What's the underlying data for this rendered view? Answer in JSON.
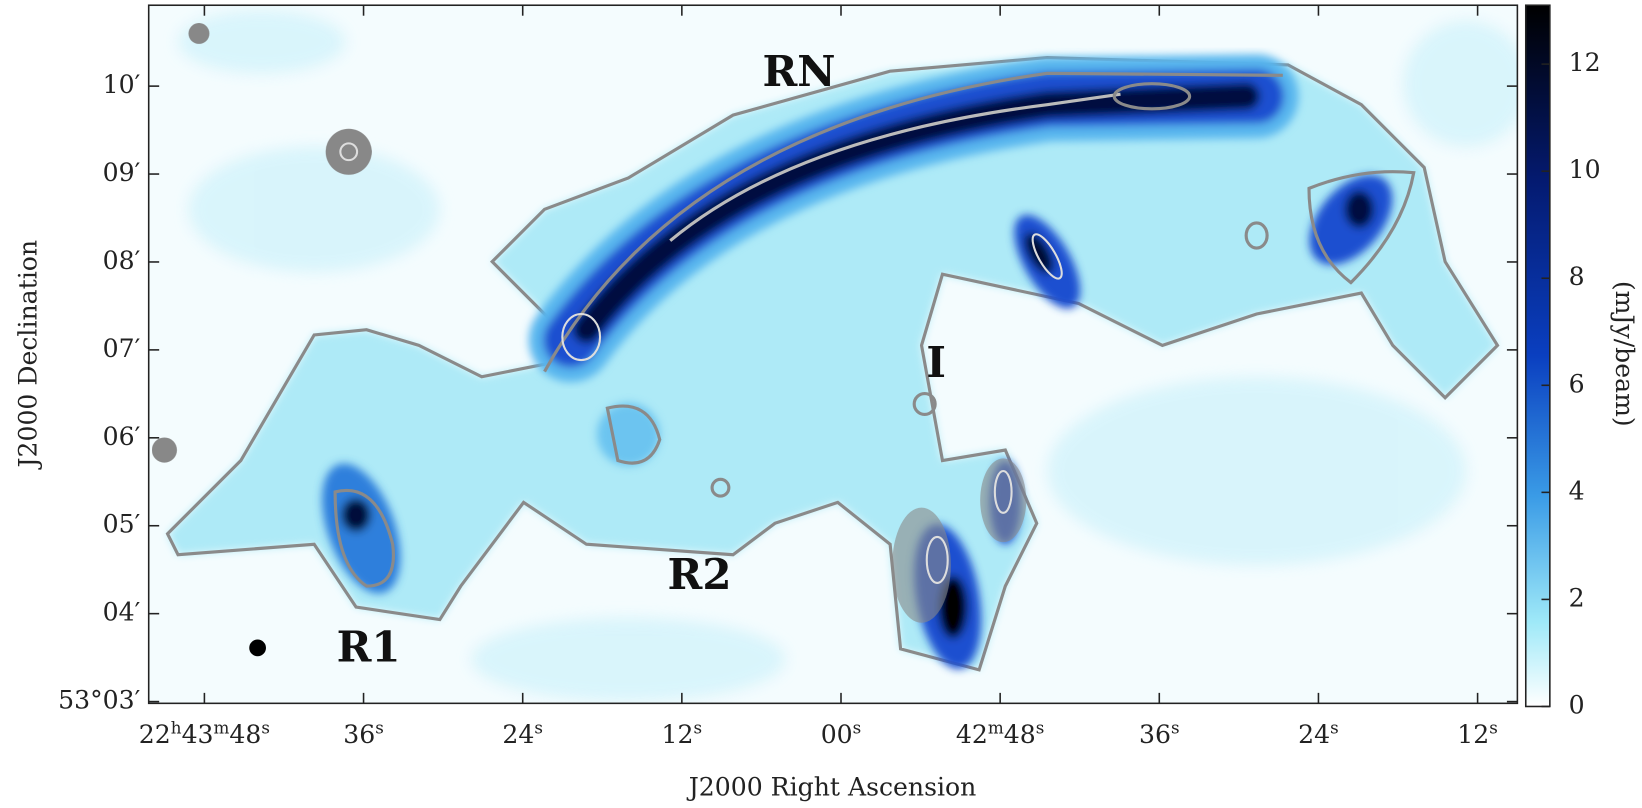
{
  "chart_data": {
    "type": "image",
    "x_label": "J2000 Right Ascension",
    "y_label": "J2000 Declination",
    "xlim": [
      112.2,
      9
    ],
    "xticks": [
      {
        "value": 108,
        "label": "22h43m48s"
      },
      {
        "value": 96,
        "label": "36s"
      },
      {
        "value": 84,
        "label": "24s"
      },
      {
        "value": 72,
        "label": "12s"
      },
      {
        "value": 60,
        "label": "00s"
      },
      {
        "value": 48,
        "label": "42m48s"
      },
      {
        "value": 36,
        "label": "36s"
      },
      {
        "value": 24,
        "label": "24s"
      },
      {
        "value": 12,
        "label": "12s"
      }
    ],
    "ylim": [
      2.98,
      10.92
    ],
    "yticks": [
      {
        "value": 3,
        "label": "53°03′"
      },
      {
        "value": 4,
        "label": "04′"
      },
      {
        "value": 5,
        "label": "05′"
      },
      {
        "value": 6,
        "label": "06′"
      },
      {
        "value": 7,
        "label": "07′"
      },
      {
        "value": 8,
        "label": "08′"
      },
      {
        "value": 9,
        "label": "09′"
      },
      {
        "value": 10,
        "label": "10′"
      }
    ],
    "colorbar": {
      "label": "(mJy/beam)",
      "lim": [
        0,
        13.1
      ],
      "ticks": [
        0,
        2,
        4,
        6,
        8,
        10,
        12
      ]
    },
    "annotations": [
      "RN",
      "I",
      "R1",
      "R2"
    ]
  }
}
